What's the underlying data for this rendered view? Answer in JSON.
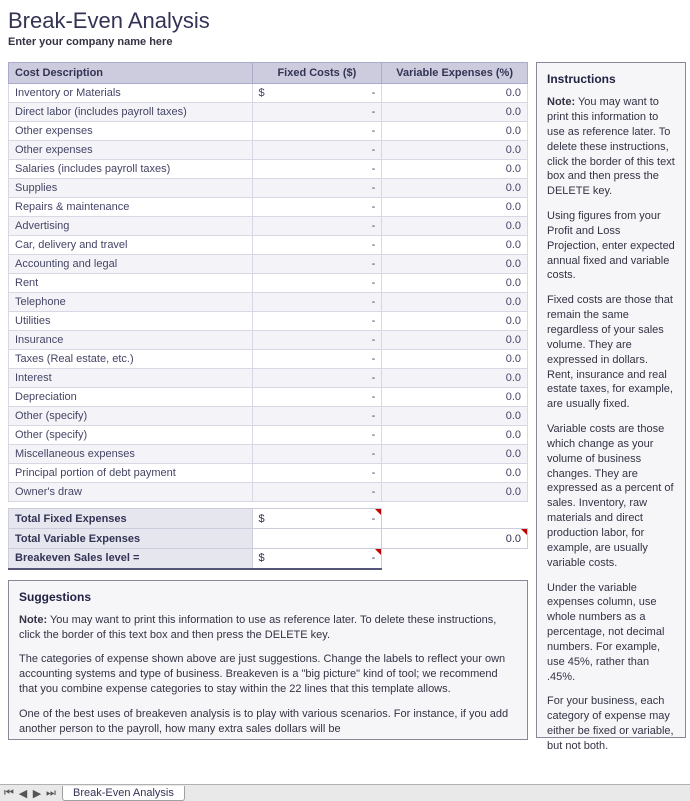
{
  "title": "Break-Even Analysis",
  "subtitle": "Enter your company name here",
  "table": {
    "headers": {
      "desc": "Cost Description",
      "fixed": "Fixed Costs ($)",
      "var": "Variable Expenses (%)"
    },
    "currency_symbol": "$",
    "dash": "-",
    "rows": [
      {
        "desc": "Inventory or Materials",
        "show_currency": true,
        "var": "0.0"
      },
      {
        "desc": "Direct labor (includes payroll taxes)",
        "show_currency": false,
        "var": "0.0"
      },
      {
        "desc": "Other expenses",
        "show_currency": false,
        "var": "0.0"
      },
      {
        "desc": "Other expenses",
        "show_currency": false,
        "var": "0.0"
      },
      {
        "desc": "Salaries (includes payroll taxes)",
        "show_currency": false,
        "var": "0.0"
      },
      {
        "desc": "Supplies",
        "show_currency": false,
        "var": "0.0"
      },
      {
        "desc": "Repairs & maintenance",
        "show_currency": false,
        "var": "0.0"
      },
      {
        "desc": "Advertising",
        "show_currency": false,
        "var": "0.0"
      },
      {
        "desc": "Car, delivery and travel",
        "show_currency": false,
        "var": "0.0"
      },
      {
        "desc": "Accounting and legal",
        "show_currency": false,
        "var": "0.0"
      },
      {
        "desc": "Rent",
        "show_currency": false,
        "var": "0.0"
      },
      {
        "desc": "Telephone",
        "show_currency": false,
        "var": "0.0"
      },
      {
        "desc": "Utilities",
        "show_currency": false,
        "var": "0.0"
      },
      {
        "desc": "Insurance",
        "show_currency": false,
        "var": "0.0"
      },
      {
        "desc": "Taxes (Real estate, etc.)",
        "show_currency": false,
        "var": "0.0"
      },
      {
        "desc": "Interest",
        "show_currency": false,
        "var": "0.0"
      },
      {
        "desc": "Depreciation",
        "show_currency": false,
        "var": "0.0"
      },
      {
        "desc": "Other (specify)",
        "show_currency": false,
        "var": "0.0"
      },
      {
        "desc": "Other (specify)",
        "show_currency": false,
        "var": "0.0"
      },
      {
        "desc": "Miscellaneous expenses",
        "show_currency": false,
        "var": "0.0"
      },
      {
        "desc": "Principal portion of debt payment",
        "show_currency": false,
        "var": "0.0"
      },
      {
        "desc": "Owner's draw",
        "show_currency": false,
        "var": "0.0"
      }
    ]
  },
  "totals": {
    "fixed_label": "Total Fixed Expenses",
    "fixed_currency": "$",
    "fixed_dash": "-",
    "variable_label": "Total Variable Expenses",
    "variable_value": "0.0",
    "breakeven_label": "Breakeven Sales level   =",
    "breakeven_currency": "$",
    "breakeven_dash": "-"
  },
  "suggestions": {
    "heading": "Suggestions",
    "note_label": "Note:",
    "note_text": " You may want to print this information to use as reference later. To delete these instructions, click the border of this text box and then press the DELETE key.",
    "p2": "The categories of expense shown above are just suggestions. Change the labels to reflect your own accounting systems and type of business. Breakeven is a \"big picture\" kind of tool; we recommend that you combine expense categories to stay within the 22 lines that this template allows.",
    "p3": "One of the best uses of breakeven analysis is to play with various scenarios. For instance, if you add another person to the payroll, how many extra sales dollars will be"
  },
  "instructions": {
    "heading": "Instructions",
    "note_label": "Note:",
    "note_text": " You may want to print this information to use as reference later.  To delete these instructions, click the border of this text box and then press the DELETE key.",
    "p2": "Using figures from your Profit and Loss Projection, enter expected annual fixed and variable costs.",
    "p3": "Fixed costs are those that remain the same regardless of your sales volume. They are expressed in dollars. Rent, insurance and real estate taxes, for example, are usually fixed.",
    "p4": "Variable costs are those which change as your volume of business changes. They are expressed as a percent of sales. Inventory, raw materials and direct production labor, for example, are usually variable costs.",
    "p5": "Under the variable expenses column, use whole numbers as a percentage, not decimal numbers. For example, use 45%, rather than .45%.",
    "p6": "For your business, each category of expense may either be fixed or variable, but not both."
  },
  "sheet_tab": "Break-Even Analysis",
  "colors": {
    "header_bg": "#ccccde",
    "row_alt_bg": "#f4f4f8",
    "panel_bg": "#f6f6f9",
    "text": "#333355"
  }
}
